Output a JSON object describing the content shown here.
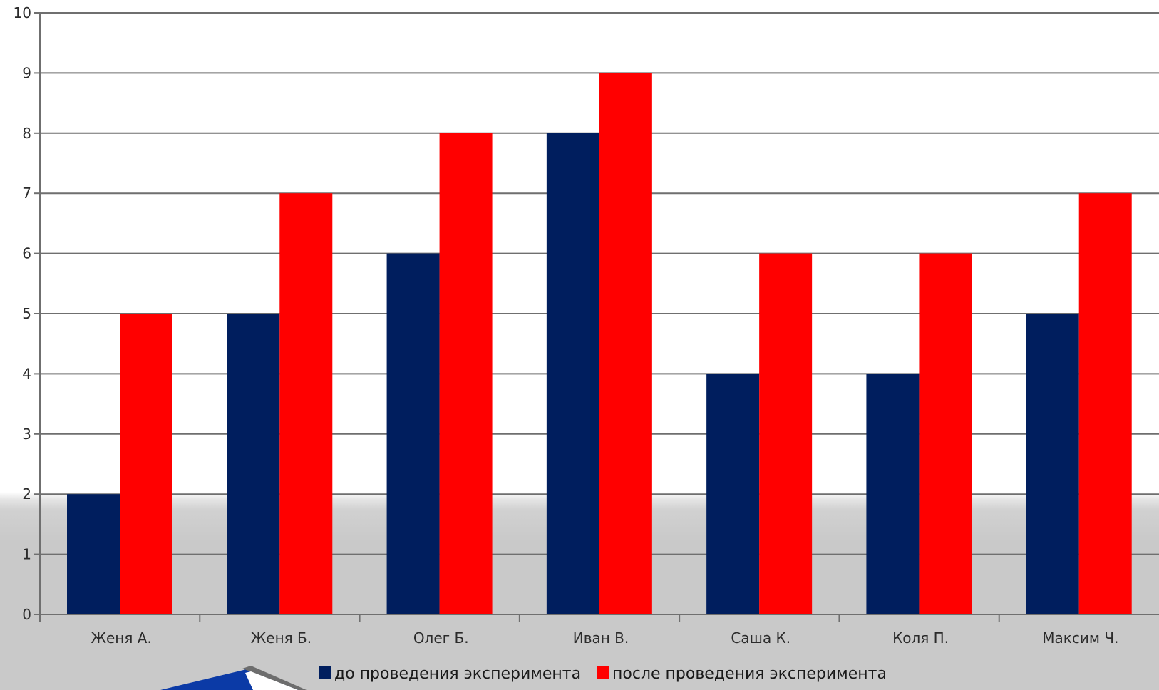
{
  "chart_data": {
    "type": "bar",
    "categories": [
      "Женя А.",
      "Женя Б.",
      "Олег Б.",
      "Иван В.",
      "Саша К.",
      "Коля П.",
      "Максим Ч."
    ],
    "series": [
      {
        "name": "до проведения эксперимента",
        "values": [
          2,
          5,
          6,
          8,
          4,
          4,
          5
        ],
        "color": "#001e5e"
      },
      {
        "name": "после проведения эксперимента",
        "values": [
          5,
          7,
          8,
          9,
          6,
          6,
          7
        ],
        "color": "#ff0000"
      }
    ],
    "title": "",
    "xlabel": "",
    "ylabel": "",
    "ylim": [
      0,
      10
    ],
    "yticks": [
      "0",
      "1",
      "2",
      "3",
      "4",
      "5",
      "6",
      "7",
      "8",
      "9",
      "10"
    ],
    "grid": true,
    "legend_position": "bottom"
  },
  "decoration": {
    "shape_color_blue": "#0b3aa6",
    "shape_color_frame": "#6d6d6d"
  }
}
